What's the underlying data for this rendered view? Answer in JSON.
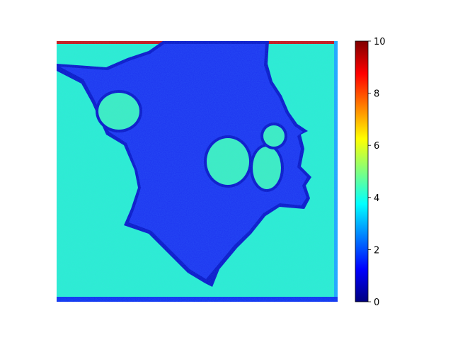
{
  "chart_data": {
    "type": "heatmap",
    "title": "",
    "xlabel": "",
    "ylabel": "",
    "colormap": "jet",
    "value_range": [
      0,
      10
    ],
    "colorbar": {
      "ticks": [
        0,
        2,
        4,
        6,
        8,
        10
      ],
      "tick_labels": [
        "0",
        "2",
        "4",
        "6",
        "8",
        "10"
      ]
    },
    "regions": [
      {
        "name": "background",
        "approx_value": 4.3
      },
      {
        "name": "cell-body",
        "approx_value": 1.3
      },
      {
        "name": "vacuoles",
        "approx_value": 4.5
      },
      {
        "name": "cell-membrane",
        "approx_value": 0.7
      }
    ],
    "axes_visible": false
  },
  "colors": {
    "jet_0": "#00007f",
    "jet_1": "#0000ff",
    "jet_2": "#007fff",
    "jet_3": "#00ffff",
    "jet_4": "#7fff7f",
    "jet_5": "#ffff00",
    "jet_6": "#ff7f00",
    "jet_7": "#ff0000",
    "jet_8": "#7f0000"
  }
}
